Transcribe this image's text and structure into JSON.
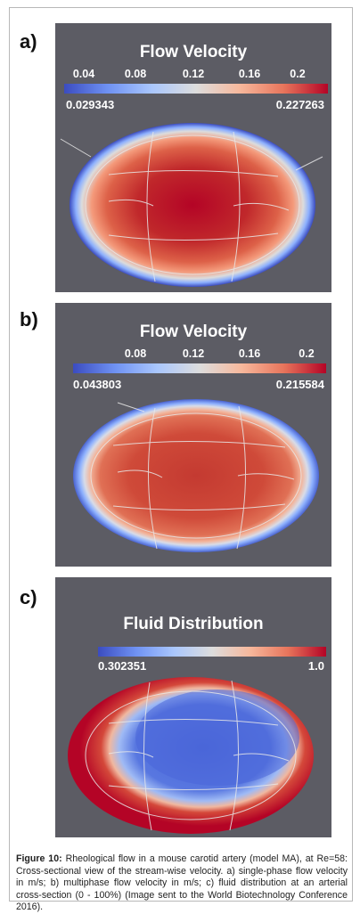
{
  "figure": {
    "panels": [
      {
        "label": "a)",
        "title": "Flow Velocity",
        "ticks": [
          "0.04",
          "0.08",
          "0.12",
          "0.16",
          "0.2"
        ],
        "min_label": "0.029343",
        "max_label": "0.227263",
        "colormap": "cool-to-warm (blue-white-red)"
      },
      {
        "label": "b)",
        "title": "Flow Velocity",
        "ticks": [
          "0.08",
          "0.12",
          "0.16",
          "0.2"
        ],
        "min_label": "0.043803",
        "max_label": "0.215584",
        "colormap": "cool-to-warm (blue-white-red)"
      },
      {
        "label": "c)",
        "title": "Fluid Distribution",
        "ticks": [],
        "min_label": "0.302351",
        "max_label": "1.0",
        "colormap": "cool-to-warm (blue-white-red)"
      }
    ],
    "caption": {
      "bold": "Figure 10:",
      "text": " Rheological flow in a mouse carotid artery (model MA), at Re=58: Cross-sectional view of the stream-wise velocity. a) single-phase flow velocity in m/s; b) multiphase flow velocity in m/s; c) fluid distribution at an arterial cross-section (0 - 100%) (Image sent to the World Biotechnology Conference 2016)."
    },
    "colors": {
      "background": "#5c5c64",
      "low": "#3b4cc0",
      "mid": "#dddddd",
      "high": "#b40426"
    }
  }
}
